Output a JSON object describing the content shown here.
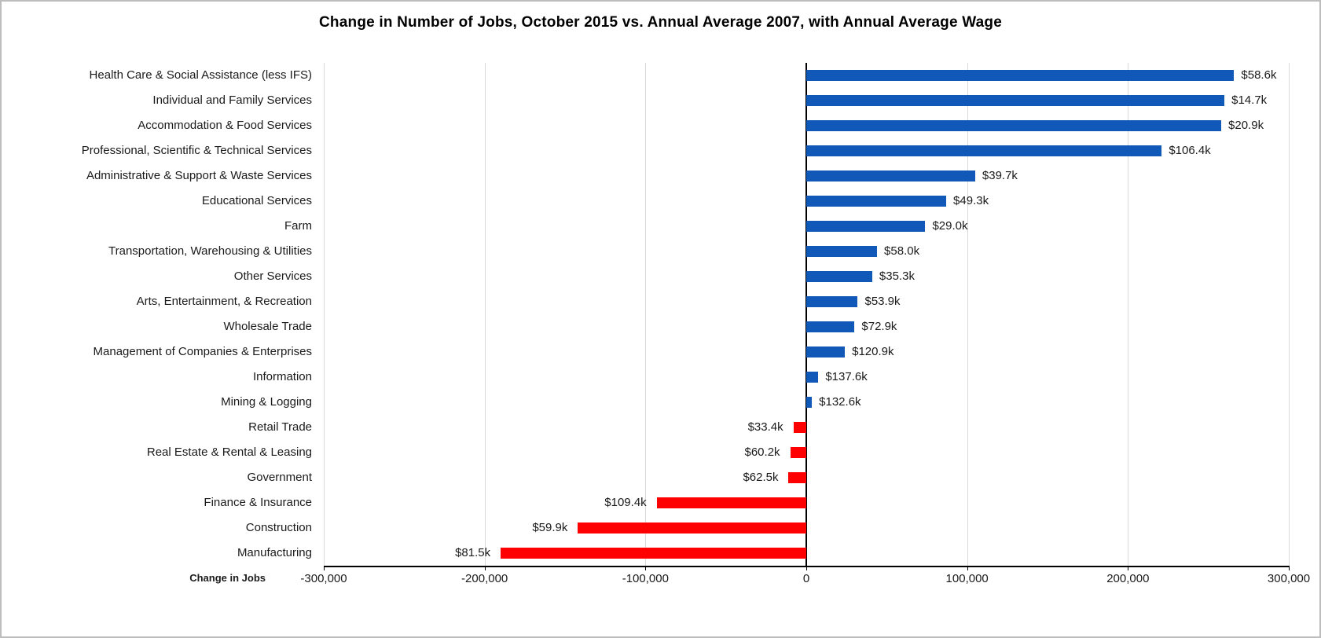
{
  "chart_data": {
    "type": "bar",
    "orientation": "horizontal",
    "title": "Change in Number of Jobs, October 2015 vs. Annual Average 2007, with Annual Average Wage",
    "xlabel": "Change in Jobs",
    "xlim": [
      -300000,
      300000
    ],
    "xticks": [
      -300000,
      -200000,
      -100000,
      0,
      100000,
      200000,
      300000
    ],
    "xtick_labels": [
      "-300,000",
      "-200,000",
      "-100,000",
      "0",
      "100,000",
      "200,000",
      "300,000"
    ],
    "grid": true,
    "legend": "none",
    "colors": {
      "positive_bar": "#1159b8",
      "negative_bar": "#ff0000",
      "gridline": "#d9d9d9",
      "axis": "#000000",
      "text": "#1a1a1a"
    },
    "categories": [
      "Health Care & Social Assistance (less IFS)",
      "Individual and Family Services",
      "Accommodation & Food Services",
      "Professional, Scientific & Technical Services",
      "Administrative & Support & Waste Services",
      "Educational Services",
      "Farm",
      "Transportation, Warehousing & Utilities",
      "Other Services",
      "Arts, Entertainment, & Recreation",
      "Wholesale Trade",
      "Management of Companies & Enterprises",
      "Information",
      "Mining & Logging",
      "Retail Trade",
      "Real Estate & Rental & Leasing",
      "Government",
      "Finance & Insurance",
      "Construction",
      "Manufacturing"
    ],
    "values": [
      266000,
      260000,
      258000,
      221000,
      105000,
      87000,
      74000,
      44000,
      41000,
      32000,
      30000,
      24000,
      7500,
      3500,
      -8000,
      -10000,
      -11000,
      -93000,
      -142000,
      -190000
    ],
    "wage_labels": [
      "$58.6k",
      "$14.7k",
      "$20.9k",
      "$106.4k",
      "$39.7k",
      "$49.3k",
      "$29.0k",
      "$58.0k",
      "$35.3k",
      "$53.9k",
      "$72.9k",
      "$120.9k",
      "$137.6k",
      "$132.6k",
      "$33.4k",
      "$60.2k",
      "$62.5k",
      "$109.4k",
      "$59.9k",
      "$81.5k"
    ]
  }
}
